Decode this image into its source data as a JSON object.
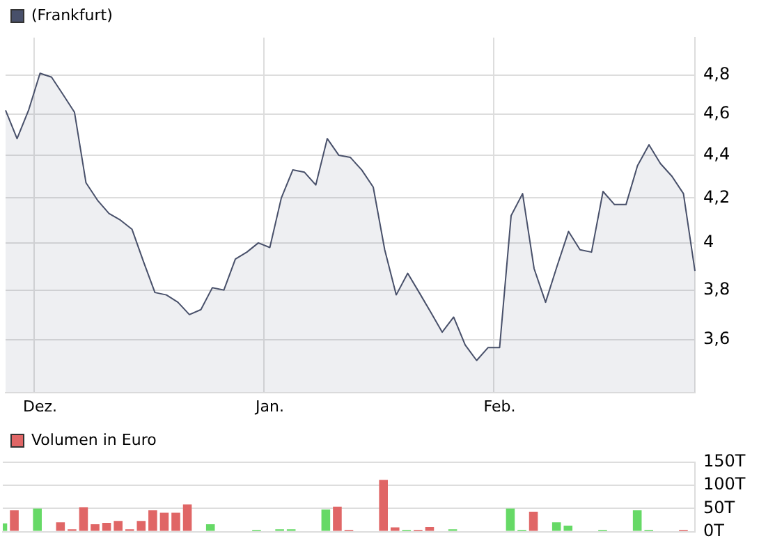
{
  "chart_data": [
    {
      "type": "area",
      "categories": [
        null,
        null,
        null,
        "Dez.",
        null,
        null,
        null,
        null,
        null,
        null,
        null,
        null,
        null,
        null,
        null,
        null,
        null,
        null,
        null,
        null,
        null,
        null,
        null,
        "Jan.",
        null,
        null,
        null,
        null,
        null,
        null,
        null,
        null,
        null,
        null,
        null,
        null,
        null,
        null,
        null,
        null,
        null,
        null,
        null,
        "Feb.",
        null,
        null,
        null,
        null,
        null,
        null,
        null,
        null,
        null,
        null,
        null,
        null,
        null,
        null,
        null,
        null,
        null
      ],
      "series": [
        {
          "name": "(Frankfurt)",
          "color": "#48506a",
          "values": [
            4.62,
            4.48,
            4.62,
            4.81,
            4.79,
            4.7,
            4.61,
            4.27,
            4.19,
            4.13,
            4.1,
            4.06,
            3.92,
            3.79,
            3.78,
            3.75,
            3.7,
            3.72,
            3.81,
            3.8,
            3.93,
            3.96,
            4.0,
            3.98,
            4.2,
            4.33,
            4.32,
            4.26,
            4.48,
            4.4,
            4.39,
            4.33,
            4.25,
            3.97,
            3.78,
            3.87,
            3.79,
            3.71,
            3.63,
            3.69,
            3.58,
            3.52,
            3.57,
            3.57,
            4.12,
            4.22,
            3.89,
            3.75,
            3.9,
            4.05,
            3.97,
            3.96,
            4.23,
            4.17,
            4.17,
            4.35,
            4.45,
            4.36,
            4.3,
            4.22,
            3.88
          ]
        }
      ],
      "log": true,
      "ylim": [
        3.41,
        5.0
      ],
      "yticks": [
        {
          "value": 3.6,
          "label": "3,6"
        },
        {
          "value": 3.8,
          "label": "3,8"
        },
        {
          "value": 4,
          "label": "4"
        },
        {
          "value": 4.2,
          "label": "4,2"
        },
        {
          "value": 4.4,
          "label": "4,4"
        },
        {
          "value": 4.6,
          "label": "4,6"
        },
        {
          "value": 4.8,
          "label": "4,8"
        }
      ],
      "grid": true,
      "legend": "top left",
      "marker": "none",
      "line_style": "solid"
    },
    {
      "type": "bar",
      "categories": [
        null,
        null,
        null,
        null,
        null,
        null,
        null,
        null,
        null,
        null,
        null,
        null,
        null,
        null,
        null,
        null,
        null,
        null,
        null,
        null,
        null,
        null,
        null,
        null,
        null,
        null,
        null,
        null,
        null,
        null,
        null,
        null,
        null,
        null,
        null,
        null,
        null,
        null,
        null,
        null,
        null,
        null,
        null,
        null,
        null,
        null,
        null,
        null,
        null,
        null,
        null,
        null,
        null,
        null,
        null,
        null,
        null,
        null,
        null,
        null,
        null
      ],
      "series": [
        {
          "name": "Volumen in Euro",
          "color": "#e06666",
          "values": [
            18,
            46,
            0,
            50,
            0,
            20,
            5,
            53,
            16,
            19,
            23,
            5,
            23,
            46,
            41,
            41,
            59,
            0,
            16,
            0,
            0,
            0,
            4,
            0,
            5,
            5,
            0,
            0,
            48,
            54,
            4,
            0,
            0,
            112,
            9,
            4,
            4,
            10,
            0,
            5,
            0,
            0,
            0,
            0,
            50,
            4,
            43,
            0,
            20,
            13,
            0,
            0,
            4,
            0,
            0,
            46,
            4,
            0,
            0,
            4,
            0
          ],
          "colors": [
            "#66d966",
            "#e06666",
            "#e06666",
            "#66d966",
            "#e06666",
            "#e06666",
            "#e06666",
            "#e06666",
            "#e06666",
            "#e06666",
            "#e06666",
            "#e06666",
            "#e06666",
            "#e06666",
            "#e06666",
            "#e06666",
            "#e06666",
            "#e06666",
            "#66d966",
            "#e06666",
            "#e06666",
            "#e06666",
            "#66d966",
            "#e06666",
            "#66d966",
            "#66d966",
            "#e06666",
            "#e06666",
            "#66d966",
            "#e06666",
            "#e06666",
            "#e06666",
            "#e06666",
            "#e06666",
            "#e06666",
            "#66d966",
            "#e06666",
            "#e06666",
            "#e06666",
            "#66d966",
            "#e06666",
            "#e06666",
            "#e06666",
            "#e06666",
            "#66d966",
            "#66d966",
            "#e06666",
            "#e06666",
            "#66d966",
            "#66d966",
            "#e06666",
            "#e06666",
            "#66d966",
            "#e06666",
            "#e06666",
            "#66d966",
            "#66d966",
            "#e06666",
            "#e06666",
            "#e06666",
            "#e06666"
          ]
        }
      ],
      "ylim": [
        0,
        150
      ],
      "yticks": [
        {
          "value": 0,
          "label": "0T"
        },
        {
          "value": 50,
          "label": "50T"
        },
        {
          "value": 100,
          "label": "100T"
        },
        {
          "value": 150,
          "label": "150T"
        }
      ],
      "grid": "y",
      "legend": "top left",
      "tick_labels": "y"
    }
  ]
}
